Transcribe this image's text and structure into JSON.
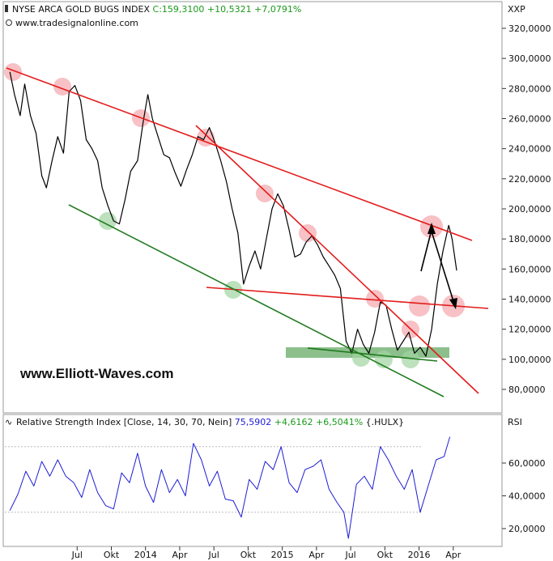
{
  "header": {
    "title": "NYSE ARCA GOLD BUGS INDEX",
    "last": "C:159,3100",
    "change": "+10,5321",
    "change_pct": "+7,0791%",
    "source": "www.tradesignalonline.com",
    "currency": "XXP",
    "colors": {
      "positive": "#1a9a1a"
    }
  },
  "watermark": "www.Elliott-Waves.com",
  "rsi_header": {
    "title": "Relative Strength Index [Close, 14, 30, 70, Nein]",
    "value": "75,5902",
    "change": "+4,6162",
    "change_pct": "+6,5041%",
    "ref": "{.HULX}",
    "axis_label": "RSI"
  },
  "chart_data": [
    {
      "type": "line",
      "ylim": [
        60,
        330
      ],
      "yticks": [
        "80,0000",
        "100,0000",
        "120,0000",
        "140,0000",
        "160,0000",
        "180,0000",
        "200,0000",
        "220,0000",
        "240,0000",
        "260,0000",
        "280,0000",
        "300,0000",
        "320,0000"
      ],
      "ytick_values": [
        80,
        100,
        120,
        140,
        160,
        180,
        200,
        220,
        240,
        260,
        280,
        300,
        320
      ],
      "x_tick_labels": [
        "Jul",
        "Okt",
        "2014",
        "Apr",
        "Jul",
        "Okt",
        "2015",
        "Apr",
        "Jul",
        "Okt",
        "2016",
        "Apr"
      ],
      "x_tick_months": [
        6,
        9,
        12,
        15,
        18,
        21,
        24,
        27,
        30,
        33,
        36,
        39
      ],
      "xlim_months": [
        -0.2,
        41.5
      ],
      "series": [
        {
          "values": [
            [
              0.1,
              291
            ],
            [
              0.5,
              276
            ],
            [
              1.0,
              262
            ],
            [
              1.4,
              283
            ],
            [
              1.9,
              262
            ],
            [
              2.4,
              250
            ],
            [
              2.9,
              222
            ],
            [
              3.3,
              214
            ],
            [
              3.8,
              232
            ],
            [
              4.3,
              248
            ],
            [
              4.8,
              237
            ],
            [
              5.3,
              278
            ],
            [
              5.8,
              282
            ],
            [
              6.3,
              272
            ],
            [
              6.8,
              246
            ],
            [
              7.3,
              240
            ],
            [
              7.8,
              232
            ],
            [
              8.2,
              214
            ],
            [
              8.7,
              202
            ],
            [
              9.2,
              192
            ],
            [
              9.7,
              190
            ],
            [
              10.2,
              206
            ],
            [
              10.7,
              225
            ],
            [
              11.3,
              232
            ],
            [
              11.8,
              258
            ],
            [
              12.2,
              276
            ],
            [
              12.6,
              260
            ],
            [
              13.1,
              248
            ],
            [
              13.6,
              236
            ],
            [
              14.1,
              234
            ],
            [
              14.6,
              224
            ],
            [
              15.1,
              215
            ],
            [
              15.6,
              226
            ],
            [
              16.1,
              236
            ],
            [
              16.6,
              248
            ],
            [
              17.1,
              246
            ],
            [
              17.6,
              254
            ],
            [
              18.1,
              244
            ],
            [
              18.6,
              232
            ],
            [
              19.1,
              218
            ],
            [
              19.6,
              200
            ],
            [
              20.1,
              184
            ],
            [
              20.6,
              150
            ],
            [
              21.1,
              162
            ],
            [
              21.6,
              172
            ],
            [
              22.1,
              160
            ],
            [
              22.6,
              180
            ],
            [
              23.1,
              200
            ],
            [
              23.6,
              210
            ],
            [
              24.1,
              202
            ],
            [
              24.6,
              186
            ],
            [
              25.1,
              168
            ],
            [
              25.6,
              170
            ],
            [
              26.1,
              178
            ],
            [
              26.6,
              182
            ],
            [
              27.1,
              176
            ],
            [
              27.6,
              168
            ],
            [
              28.1,
              162
            ],
            [
              28.6,
              156
            ],
            [
              29.1,
              147
            ],
            [
              29.6,
              112
            ],
            [
              30.1,
              104
            ],
            [
              30.6,
              120
            ],
            [
              31.1,
              110
            ],
            [
              31.6,
              104
            ],
            [
              32.1,
              118
            ],
            [
              32.6,
              138
            ],
            [
              33.1,
              136
            ],
            [
              33.6,
              120
            ],
            [
              34.1,
              106
            ],
            [
              34.6,
              112
            ],
            [
              35.1,
              118
            ],
            [
              35.6,
              104
            ],
            [
              36.1,
              108
            ],
            [
              36.6,
              102
            ],
            [
              37.1,
              120
            ],
            [
              37.6,
              150
            ],
            [
              38.1,
              172
            ],
            [
              38.6,
              189
            ],
            [
              38.9,
              180
            ],
            [
              39.3,
              159
            ]
          ]
        }
      ]
    },
    {
      "type": "line",
      "ylim": [
        10,
        80
      ],
      "yticks": [
        "20,0000",
        "40,0000",
        "60,0000"
      ],
      "ytick_values": [
        20,
        40,
        60
      ],
      "series": [
        {
          "values": [
            [
              0.1,
              31
            ],
            [
              0.8,
              41
            ],
            [
              1.5,
              55
            ],
            [
              2.2,
              46
            ],
            [
              2.9,
              61
            ],
            [
              3.6,
              52
            ],
            [
              4.3,
              62
            ],
            [
              5.0,
              52
            ],
            [
              5.7,
              48
            ],
            [
              6.4,
              39
            ],
            [
              7.1,
              56
            ],
            [
              7.8,
              42
            ],
            [
              8.5,
              34
            ],
            [
              9.2,
              32
            ],
            [
              9.9,
              54
            ],
            [
              10.6,
              48
            ],
            [
              11.3,
              66
            ],
            [
              12.0,
              46
            ],
            [
              12.7,
              36
            ],
            [
              13.4,
              56
            ],
            [
              14.1,
              42
            ],
            [
              14.8,
              50
            ],
            [
              15.5,
              40
            ],
            [
              16.2,
              72
            ],
            [
              16.9,
              62
            ],
            [
              17.6,
              46
            ],
            [
              18.3,
              55
            ],
            [
              19.0,
              38
            ],
            [
              19.7,
              37
            ],
            [
              20.4,
              27
            ],
            [
              21.1,
              50
            ],
            [
              21.8,
              44
            ],
            [
              22.5,
              61
            ],
            [
              23.2,
              56
            ],
            [
              23.9,
              70
            ],
            [
              24.6,
              48
            ],
            [
              25.3,
              42
            ],
            [
              26.0,
              56
            ],
            [
              26.7,
              58
            ],
            [
              27.4,
              62
            ],
            [
              28.1,
              44
            ],
            [
              28.8,
              36
            ],
            [
              29.4,
              30
            ],
            [
              29.8,
              14
            ],
            [
              30.5,
              47
            ],
            [
              31.2,
              52
            ],
            [
              31.9,
              44
            ],
            [
              32.6,
              70
            ],
            [
              33.3,
              62
            ],
            [
              34.0,
              52
            ],
            [
              34.7,
              44
            ],
            [
              35.4,
              56
            ],
            [
              36.1,
              30
            ],
            [
              36.8,
              46
            ],
            [
              37.5,
              62
            ],
            [
              38.2,
              64
            ],
            [
              38.7,
              76
            ]
          ]
        }
      ]
    }
  ]
}
